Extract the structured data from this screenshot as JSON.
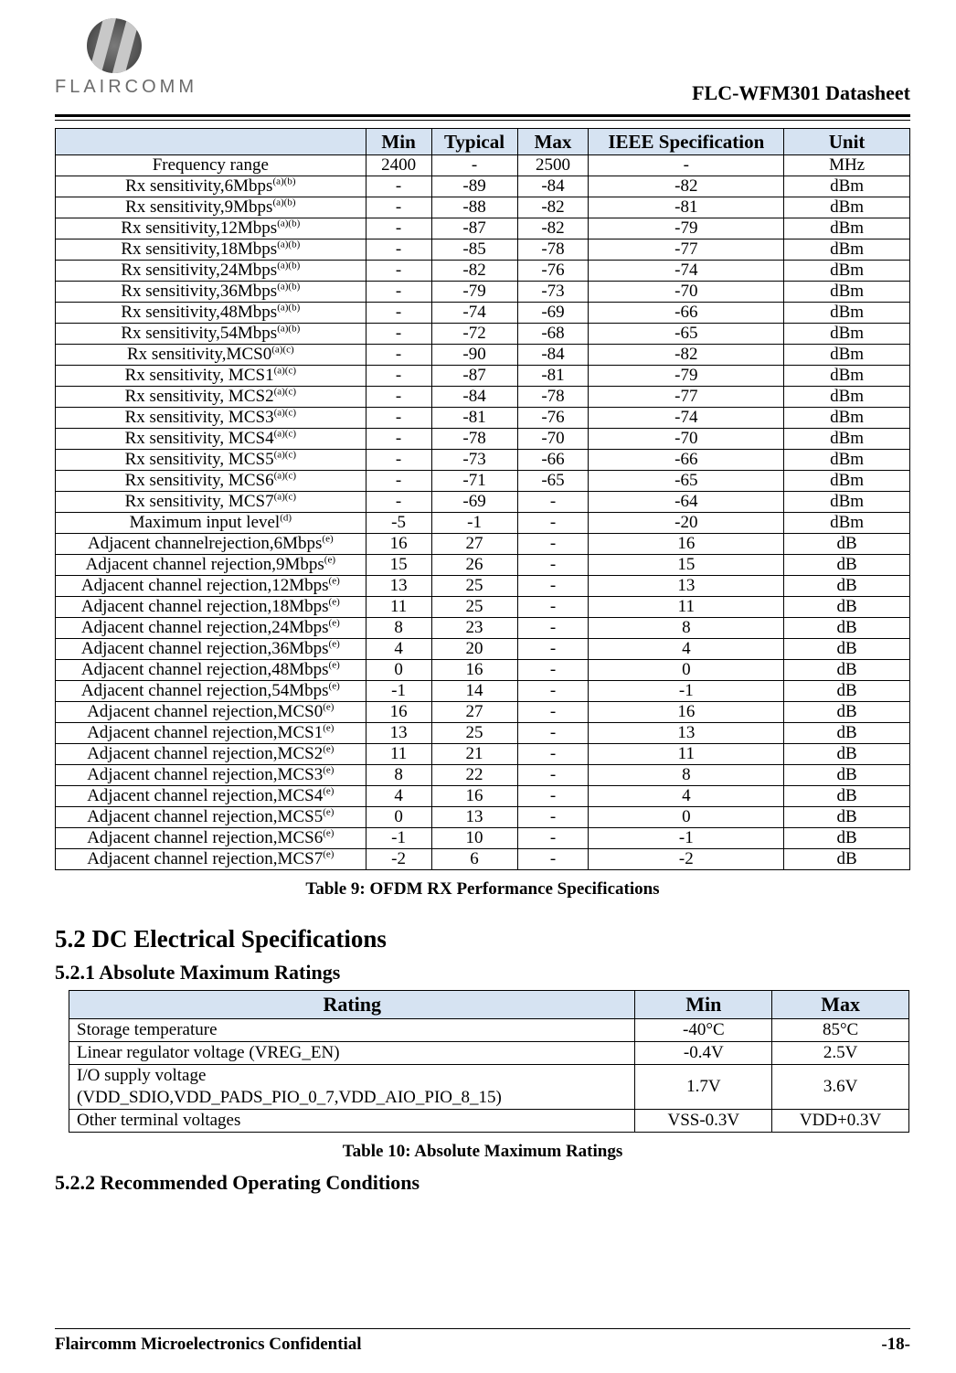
{
  "logo_text": "FLAIRCOMM",
  "doc_title": "FLC-WFM301 Datasheet",
  "table9": {
    "headers": [
      "",
      "Min",
      "Typical",
      "Max",
      "IEEE Specification",
      "Unit"
    ],
    "rows": [
      {
        "param": "Frequency range",
        "sup": "",
        "min": "2400",
        "typ": "-",
        "max": "2500",
        "ieee": "-",
        "unit": "MHz"
      },
      {
        "param": "Rx sensitivity,6Mbps",
        "sup": "(a)(b)",
        "min": "-",
        "typ": "-89",
        "max": "-84",
        "ieee": "-82",
        "unit": "dBm"
      },
      {
        "param": "Rx sensitivity,9Mbps",
        "sup": "(a)(b)",
        "min": "-",
        "typ": "-88",
        "max": "-82",
        "ieee": "-81",
        "unit": "dBm"
      },
      {
        "param": "Rx sensitivity,12Mbps",
        "sup": "(a)(b)",
        "min": "-",
        "typ": "-87",
        "max": "-82",
        "ieee": "-79",
        "unit": "dBm"
      },
      {
        "param": "Rx sensitivity,18Mbps",
        "sup": "(a)(b)",
        "min": "-",
        "typ": "-85",
        "max": "-78",
        "ieee": "-77",
        "unit": "dBm"
      },
      {
        "param": "Rx sensitivity,24Mbps",
        "sup": "(a)(b)",
        "min": "-",
        "typ": "-82",
        "max": "-76",
        "ieee": "-74",
        "unit": "dBm"
      },
      {
        "param": "Rx sensitivity,36Mbps",
        "sup": "(a)(b)",
        "min": "-",
        "typ": "-79",
        "max": "-73",
        "ieee": "-70",
        "unit": "dBm"
      },
      {
        "param": "Rx sensitivity,48Mbps",
        "sup": "(a)(b)",
        "min": "-",
        "typ": "-74",
        "max": "-69",
        "ieee": "-66",
        "unit": "dBm"
      },
      {
        "param": "Rx sensitivity,54Mbps",
        "sup": "(a)(b)",
        "min": "-",
        "typ": "-72",
        "max": "-68",
        "ieee": "-65",
        "unit": "dBm"
      },
      {
        "param": "Rx sensitivity,MCS0",
        "sup": "(a)(c)",
        "min": "-",
        "typ": "-90",
        "max": "-84",
        "ieee": "-82",
        "unit": "dBm"
      },
      {
        "param": "Rx sensitivity, MCS1",
        "sup": "(a)(c)",
        "min": "-",
        "typ": "-87",
        "max": "-81",
        "ieee": "-79",
        "unit": "dBm"
      },
      {
        "param": "Rx sensitivity, MCS2",
        "sup": "(a)(c)",
        "min": "-",
        "typ": "-84",
        "max": "-78",
        "ieee": "-77",
        "unit": "dBm"
      },
      {
        "param": "Rx sensitivity, MCS3",
        "sup": "(a)(c)",
        "min": "-",
        "typ": "-81",
        "max": "-76",
        "ieee": "-74",
        "unit": "dBm"
      },
      {
        "param": "Rx sensitivity, MCS4",
        "sup": "(a)(c)",
        "min": "-",
        "typ": "-78",
        "max": "-70",
        "ieee": "-70",
        "unit": "dBm"
      },
      {
        "param": "Rx sensitivity, MCS5",
        "sup": "(a)(c)",
        "min": "-",
        "typ": "-73",
        "max": "-66",
        "ieee": "-66",
        "unit": "dBm"
      },
      {
        "param": "Rx sensitivity, MCS6",
        "sup": "(a)(c)",
        "min": "-",
        "typ": "-71",
        "max": "-65",
        "ieee": "-65",
        "unit": "dBm"
      },
      {
        "param": "Rx sensitivity, MCS7",
        "sup": "(a)(c)",
        "min": "-",
        "typ": "-69",
        "max": "-",
        "ieee": "-64",
        "unit": "dBm"
      },
      {
        "param": "Maximum input level",
        "sup": "(d)",
        "min": "-5",
        "typ": "-1",
        "max": "-",
        "ieee": "-20",
        "unit": "dBm"
      },
      {
        "param": "Adjacent channelrejection,6Mbps",
        "sup": "(e)",
        "min": "16",
        "typ": "27",
        "max": "-",
        "ieee": "16",
        "unit": "dB"
      },
      {
        "param": "Adjacent channel rejection,9Mbps",
        "sup": "(e)",
        "min": "15",
        "typ": "26",
        "max": "-",
        "ieee": "15",
        "unit": "dB"
      },
      {
        "param": "Adjacent channel rejection,12Mbps",
        "sup": "(e)",
        "min": "13",
        "typ": "25",
        "max": "-",
        "ieee": "13",
        "unit": "dB"
      },
      {
        "param": "Adjacent channel rejection,18Mbps",
        "sup": "(e)",
        "min": "11",
        "typ": "25",
        "max": "-",
        "ieee": "11",
        "unit": "dB"
      },
      {
        "param": "Adjacent channel rejection,24Mbps",
        "sup": "(e)",
        "min": "8",
        "typ": "23",
        "max": "-",
        "ieee": "8",
        "unit": "dB"
      },
      {
        "param": "Adjacent channel rejection,36Mbps",
        "sup": "(e)",
        "min": "4",
        "typ": "20",
        "max": "-",
        "ieee": "4",
        "unit": "dB"
      },
      {
        "param": "Adjacent channel rejection,48Mbps",
        "sup": "(e)",
        "min": "0",
        "typ": "16",
        "max": "-",
        "ieee": "0",
        "unit": "dB"
      },
      {
        "param": "Adjacent channel rejection,54Mbps",
        "sup": "(e)",
        "min": "-1",
        "typ": "14",
        "max": "-",
        "ieee": "-1",
        "unit": "dB"
      },
      {
        "param": "Adjacent channel rejection,MCS0",
        "sup": "(e)",
        "min": "16",
        "typ": "27",
        "max": "-",
        "ieee": "16",
        "unit": "dB"
      },
      {
        "param": "Adjacent channel rejection,MCS1",
        "sup": "(e)",
        "min": "13",
        "typ": "25",
        "max": "-",
        "ieee": "13",
        "unit": "dB"
      },
      {
        "param": "Adjacent channel rejection,MCS2",
        "sup": "(e)",
        "min": "11",
        "typ": "21",
        "max": "-",
        "ieee": "11",
        "unit": "dB"
      },
      {
        "param": "Adjacent channel rejection,MCS3",
        "sup": "(e)",
        "min": "8",
        "typ": "22",
        "max": "-",
        "ieee": "8",
        "unit": "dB"
      },
      {
        "param": "Adjacent channel rejection,MCS4",
        "sup": "(e)",
        "min": "4",
        "typ": "16",
        "max": "-",
        "ieee": "4",
        "unit": "dB"
      },
      {
        "param": "Adjacent channel rejection,MCS5",
        "sup": "(e)",
        "min": "0",
        "typ": "13",
        "max": "-",
        "ieee": "0",
        "unit": "dB"
      },
      {
        "param": "Adjacent channel rejection,MCS6",
        "sup": "(e)",
        "min": "-1",
        "typ": "10",
        "max": "-",
        "ieee": "-1",
        "unit": "dB"
      },
      {
        "param": "Adjacent channel rejection,MCS7",
        "sup": "(e)",
        "min": "-2",
        "typ": "6",
        "max": "-",
        "ieee": "-2",
        "unit": "dB"
      }
    ],
    "caption": "Table 9: OFDM RX Performance Specifications"
  },
  "sec52": "5.2  DC Electrical Specifications",
  "sec521": "5.2.1  Absolute Maximum Ratings",
  "table10": {
    "headers": [
      "Rating",
      "Min",
      "Max"
    ],
    "rows": [
      {
        "rating": "Storage temperature",
        "min": "-40°C",
        "max": "85°C"
      },
      {
        "rating": "Linear regulator voltage (VREG_EN)",
        "min": "-0.4V",
        "max": "2.5V"
      },
      {
        "rating": "I/O  supply voltage (VDD_SDIO,VDD_PADS_PIO_0_7,VDD_AIO_PIO_8_15)",
        "min": "1.7V",
        "max": "3.6V"
      },
      {
        "rating": "Other terminal voltages",
        "min": "VSS-0.3V",
        "max": "VDD+0.3V"
      }
    ],
    "caption": "Table 10: Absolute Maximum Ratings"
  },
  "sec522": "5.2.2  Recommended Operating Conditions",
  "footer_left": "Flaircomm Microelectronics Confidential",
  "footer_right": "-18-"
}
